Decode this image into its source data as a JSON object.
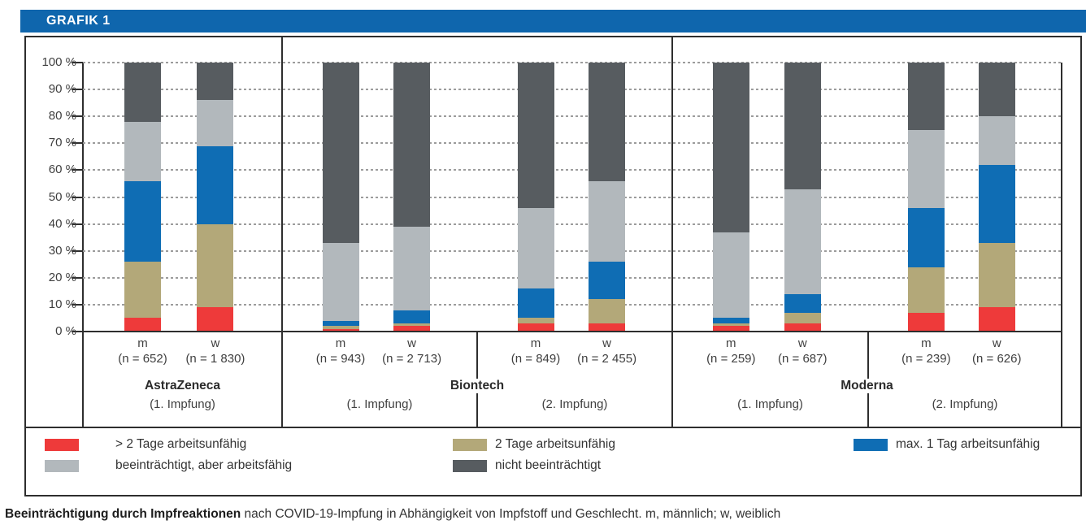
{
  "header": {
    "title": "GRAFIK 1",
    "bar_color": "#0f66ad"
  },
  "colors": {
    "red": "#ee3a3a",
    "khaki": "#b3a879",
    "blue": "#0f6db4",
    "ltgray": "#b2b8bc",
    "dkgray": "#575c60",
    "line": "#2e2e2e",
    "grid": "#9c9c9c"
  },
  "chart_data": {
    "type": "bar",
    "stacked": true,
    "unit": "percent",
    "ylim": [
      0,
      100
    ],
    "yticks": [
      "0 %",
      "10 %",
      "20 %",
      "30 %",
      "40 %",
      "50 %",
      "60 %",
      "70 %",
      "80 %",
      "90 %",
      "100 %"
    ],
    "grid": "horizontal dotted every 10%",
    "series_order_bottom_to_top": [
      "> 2 Tage arbeitsunfähig",
      "2 Tage arbeitsunfähig",
      "max. 1 Tag arbeitsunfähig",
      "beeinträchtigt, aber arbeitsfähig",
      "nicht beeinträchtigt"
    ],
    "series_color_keys_bottom_to_top": [
      "red",
      "khaki",
      "blue",
      "ltgray",
      "dkgray"
    ],
    "groups": [
      {
        "vaccine": "AstraZeneca",
        "dose": "(1. Impfung)",
        "bars": [
          {
            "gender": "m",
            "n": "(n = 652)",
            "values": [
              5,
              21,
              30,
              22,
              22
            ]
          },
          {
            "gender": "w",
            "n": "(n = 1 830)",
            "values": [
              9,
              31,
              29,
              17,
              14
            ]
          }
        ]
      },
      {
        "vaccine": "Biontech",
        "dose": "(1. Impfung)",
        "bars": [
          {
            "gender": "m",
            "n": "(n = 943)",
            "values": [
              1,
              1,
              2,
              29,
              67
            ]
          },
          {
            "gender": "w",
            "n": "(n = 2 713)",
            "values": [
              2,
              1,
              5,
              31,
              61
            ]
          }
        ]
      },
      {
        "vaccine": "Biontech",
        "dose": "(2. Impfung)",
        "bars": [
          {
            "gender": "m",
            "n": "(n = 849)",
            "values": [
              3,
              2,
              11,
              30,
              54
            ]
          },
          {
            "gender": "w",
            "n": "(n = 2 455)",
            "values": [
              3,
              9,
              14,
              30,
              44
            ]
          }
        ]
      },
      {
        "vaccine": "Moderna",
        "dose": "(1. Impfung)",
        "bars": [
          {
            "gender": "m",
            "n": "(n = 259)",
            "values": [
              2,
              1,
              2,
              32,
              63
            ]
          },
          {
            "gender": "w",
            "n": "(n = 687)",
            "values": [
              3,
              4,
              7,
              39,
              47
            ]
          }
        ]
      },
      {
        "vaccine": "Moderna",
        "dose": "(2. Impfung)",
        "bars": [
          {
            "gender": "m",
            "n": "(n = 239)",
            "values": [
              7,
              17,
              22,
              29,
              25
            ]
          },
          {
            "gender": "w",
            "n": "(n = 626)",
            "values": [
              9,
              24,
              29,
              18,
              20
            ]
          }
        ]
      }
    ],
    "vaccine_spans": [
      {
        "name": "AstraZeneca",
        "from_group": 0,
        "to_group": 0
      },
      {
        "name": "Biontech",
        "from_group": 1,
        "to_group": 2
      },
      {
        "name": "Moderna",
        "from_group": 3,
        "to_group": 4
      }
    ]
  },
  "legend": {
    "columns": [
      [
        {
          "color_key": "red",
          "label": "> 2 Tage arbeitsunfähig"
        },
        {
          "color_key": "ltgray",
          "label": "beeinträchtigt, aber arbeitsfähig"
        }
      ],
      [
        {
          "color_key": "khaki",
          "label": "2 Tage arbeitsunfähig"
        },
        {
          "color_key": "dkgray",
          "label": "nicht beeinträchtigt"
        }
      ],
      [
        {
          "color_key": "blue",
          "label": "max. 1 Tag arbeitsunfähig"
        }
      ]
    ]
  },
  "caption": {
    "bold": "Beeinträchtigung durch Impfreaktionen",
    "rest": " nach COVID-19-Impfung in Abhängigkeit von Impfstoff und Geschlecht. m, männlich; w, weiblich"
  }
}
